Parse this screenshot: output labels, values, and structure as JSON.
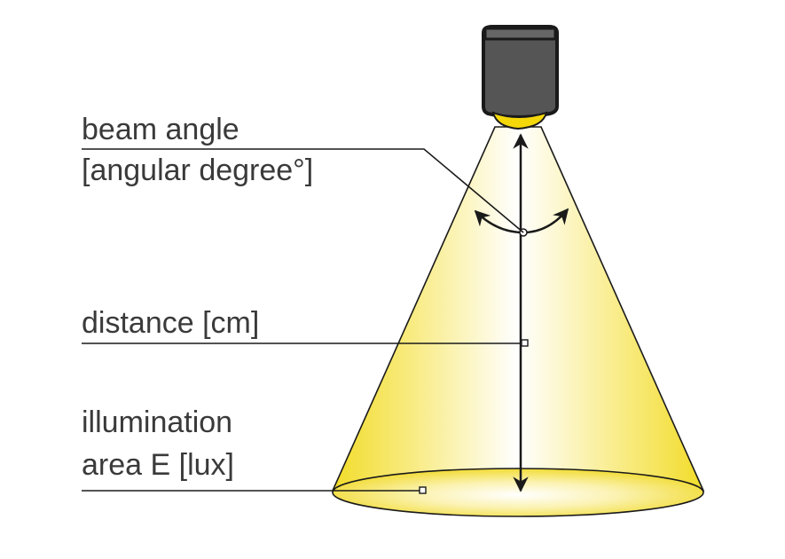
{
  "diagram": {
    "labels": {
      "beam_angle_line1": "beam angle",
      "beam_angle_line2": "[angular degree°]",
      "distance": "distance [cm]",
      "illumination_line1": "illumination",
      "illumination_line2": "area E [lux]"
    },
    "colors": {
      "beam_edge": "#f2dc2a",
      "beam_center": "#ffffff",
      "lamp_body": "#555555",
      "lamp_outline": "#1a1a1a",
      "lens": "#f5d80a",
      "lines": "#1a1a1a",
      "text": "#3a3a3a"
    }
  }
}
